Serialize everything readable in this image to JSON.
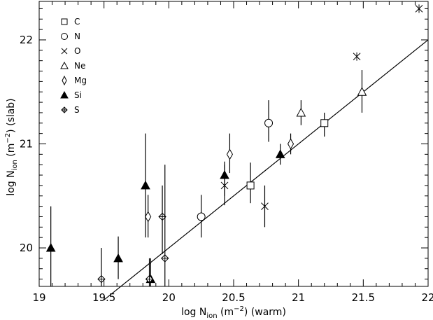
{
  "chart_data": {
    "type": "scatter",
    "xlabel": {
      "main": "log N",
      "sub": "ion",
      "unit_pre": " (m",
      "unit_sup": "−2",
      "unit_post": ") (warm)"
    },
    "ylabel": {
      "main": "log N",
      "sub": "ion",
      "unit_pre": " (m",
      "unit_sup": "−2",
      "unit_post": ") (slab)"
    },
    "xlim": [
      19,
      22
    ],
    "ylim": [
      19.63,
      22.37
    ],
    "xticks": [
      {
        "v": 19,
        "label": "19"
      },
      {
        "v": 19.5,
        "label": "19.5"
      },
      {
        "v": 20,
        "label": "20"
      },
      {
        "v": 20.5,
        "label": "20.5"
      },
      {
        "v": 21,
        "label": "21"
      },
      {
        "v": 21.5,
        "label": "21.5"
      },
      {
        "v": 22,
        "label": "22"
      }
    ],
    "yticks": [
      {
        "v": 20,
        "label": "20"
      },
      {
        "v": 21,
        "label": "21"
      },
      {
        "v": 22,
        "label": "22"
      }
    ],
    "grid": false,
    "legend_position": "top-left",
    "line": {
      "x": [
        19.5,
        22
      ],
      "y": [
        19.5,
        22
      ]
    },
    "series": [
      {
        "name": "C",
        "marker": "square",
        "points": [
          {
            "x": 20.63,
            "y": 20.6,
            "ylo": 20.43,
            "yhi": 20.82
          },
          {
            "x": 21.2,
            "y": 21.2,
            "ylo": 21.07,
            "yhi": 21.3
          }
        ]
      },
      {
        "name": "N",
        "marker": "circle",
        "points": [
          {
            "x": 20.25,
            "y": 20.3,
            "ylo": 20.1,
            "yhi": 20.51
          },
          {
            "x": 20.77,
            "y": 21.2,
            "ylo": 21.02,
            "yhi": 21.42
          }
        ]
      },
      {
        "name": "O",
        "marker": "cross",
        "points": [
          {
            "x": 20.43,
            "y": 20.6,
            "ylo": 20.41,
            "yhi": 20.8
          },
          {
            "x": 20.74,
            "y": 20.4,
            "ylo": 20.2,
            "yhi": 20.6
          }
        ]
      },
      {
        "name": "Ne",
        "marker": "triangle",
        "points": [
          {
            "x": 21.02,
            "y": 21.3,
            "ylo": 21.18,
            "yhi": 21.42
          },
          {
            "x": 21.49,
            "y": 21.5,
            "ylo": 21.3,
            "yhi": 21.71
          }
        ]
      },
      {
        "name": "Mg",
        "marker": "diamond",
        "points": [
          {
            "x": 19.84,
            "y": 20.3,
            "ylo": 20.1,
            "yhi": 20.51
          },
          {
            "x": 20.47,
            "y": 20.9,
            "ylo": 20.72,
            "yhi": 21.1
          },
          {
            "x": 20.94,
            "y": 21.0,
            "ylo": 20.9,
            "yhi": 21.1
          }
        ]
      },
      {
        "name": "Si",
        "marker": "triangle-filled",
        "points": [
          {
            "x": 19.09,
            "y": 20.0,
            "ylo": 19.63,
            "yhi": 20.4
          },
          {
            "x": 19.61,
            "y": 19.9,
            "ylo": 19.7,
            "yhi": 20.11
          },
          {
            "x": 19.82,
            "y": 20.6,
            "ylo": 20.1,
            "yhi": 21.1
          },
          {
            "x": 19.86,
            "y": 19.7,
            "ylo": 19.63,
            "yhi": 19.9
          },
          {
            "x": 20.43,
            "y": 20.7,
            "ylo": 20.5,
            "yhi": 20.83
          },
          {
            "x": 20.86,
            "y": 20.9,
            "ylo": 20.8,
            "yhi": 21.0
          }
        ]
      },
      {
        "name": "S",
        "marker": "diamond-cross",
        "points": [
          {
            "x": 19.48,
            "y": 19.7,
            "ylo": 19.63,
            "yhi": 20.0
          },
          {
            "x": 19.85,
            "y": 19.7,
            "ylo": 19.63,
            "yhi": 19.9
          },
          {
            "x": 19.95,
            "y": 20.3,
            "ylo": 19.94,
            "yhi": 20.6
          },
          {
            "x": 19.97,
            "y": 19.9,
            "ylo": 19.63,
            "yhi": 20.8
          }
        ]
      },
      {
        "name": "",
        "marker": "asterisk",
        "in_legend": false,
        "points": [
          {
            "x": 21.45,
            "y": 21.84
          },
          {
            "x": 21.93,
            "y": 22.3
          }
        ]
      }
    ]
  }
}
